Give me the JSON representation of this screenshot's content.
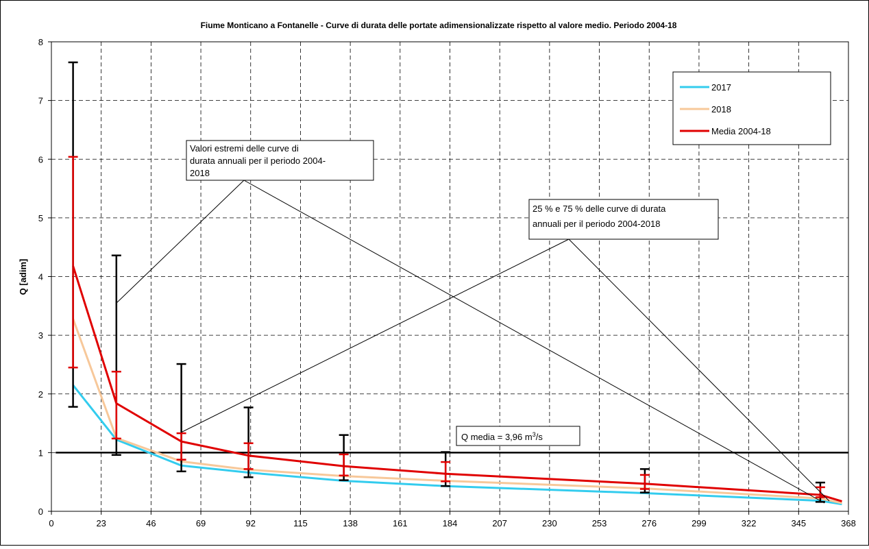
{
  "chart_data": {
    "type": "line",
    "title": "Fiume Monticano a Fontanelle - Curve di durata delle portate adimensionalizzate rispetto al valore medio. Periodo 2004-18",
    "xlabel": "",
    "ylabel": "Q [adim]",
    "xlim": [
      0,
      368
    ],
    "ylim": [
      0,
      8
    ],
    "x_ticks": [
      "0",
      "23",
      "46",
      "69",
      "92",
      "115",
      "138",
      "161",
      "184",
      "207",
      "230",
      "253",
      "276",
      "299",
      "322",
      "345",
      "368"
    ],
    "y_ticks": [
      "0",
      "1",
      "2",
      "3",
      "4",
      "5",
      "6",
      "7",
      "8"
    ],
    "grid": true,
    "legend_position": "top-right",
    "series": [
      {
        "name": "2017",
        "color": "#33ccee",
        "points": [
          [
            10,
            2.15
          ],
          [
            30,
            1.22
          ],
          [
            60,
            0.78
          ],
          [
            91,
            0.66
          ],
          [
            135,
            0.52
          ],
          [
            182,
            0.43
          ],
          [
            274,
            0.31
          ],
          [
            355,
            0.18
          ],
          [
            365,
            0.12
          ]
        ]
      },
      {
        "name": "2018",
        "color": "#f7c89a",
        "points": [
          [
            10,
            3.28
          ],
          [
            30,
            1.25
          ],
          [
            60,
            0.85
          ],
          [
            91,
            0.71
          ],
          [
            135,
            0.6
          ],
          [
            182,
            0.52
          ],
          [
            274,
            0.39
          ],
          [
            355,
            0.22
          ],
          [
            365,
            0.14
          ]
        ]
      },
      {
        "name": "Media 2004-18",
        "color": "#e00000",
        "points": [
          [
            10,
            4.18
          ],
          [
            30,
            1.84
          ],
          [
            60,
            1.19
          ],
          [
            91,
            0.95
          ],
          [
            135,
            0.77
          ],
          [
            182,
            0.64
          ],
          [
            274,
            0.47
          ],
          [
            355,
            0.28
          ],
          [
            365,
            0.17
          ]
        ]
      }
    ],
    "extreme_ranges": [
      {
        "x": 10,
        "min": 1.78,
        "max": 7.65
      },
      {
        "x": 30,
        "min": 0.96,
        "max": 4.36
      },
      {
        "x": 60,
        "min": 0.68,
        "max": 2.51
      },
      {
        "x": 91,
        "min": 0.58,
        "max": 1.77
      },
      {
        "x": 135,
        "min": 0.53,
        "max": 1.3
      },
      {
        "x": 182,
        "min": 0.43,
        "max": 1.01
      },
      {
        "x": 274,
        "min": 0.32,
        "max": 0.72
      },
      {
        "x": 355,
        "min": 0.16,
        "max": 0.49
      }
    ],
    "quartile_ranges": [
      {
        "x": 10,
        "q25": 2.45,
        "q75": 6.04
      },
      {
        "x": 30,
        "q25": 1.24,
        "q75": 2.38
      },
      {
        "x": 60,
        "q25": 0.88,
        "q75": 1.33
      },
      {
        "x": 91,
        "q25": 0.72,
        "q75": 1.16
      },
      {
        "x": 135,
        "q25": 0.61,
        "q75": 0.97
      },
      {
        "x": 182,
        "q25": 0.51,
        "q75": 0.84
      },
      {
        "x": 274,
        "q25": 0.38,
        "q75": 0.62
      },
      {
        "x": 355,
        "q25": 0.24,
        "q75": 0.41
      }
    ],
    "reference_line": {
      "y": 1,
      "x_start": 2,
      "x_end": 368,
      "label_prefix": "Q media = 3,96 m",
      "label_sup": "3",
      "label_suffix": "/s"
    },
    "annotations": {
      "extremes_lines": [
        "Valori estremi delle curve di",
        "durata annuali per il periodo 2004-",
        "2018"
      ],
      "quartiles_lines": [
        "25 % e 75 % delle curve di durata",
        "annuali per il periodo 2004-2018"
      ]
    }
  }
}
